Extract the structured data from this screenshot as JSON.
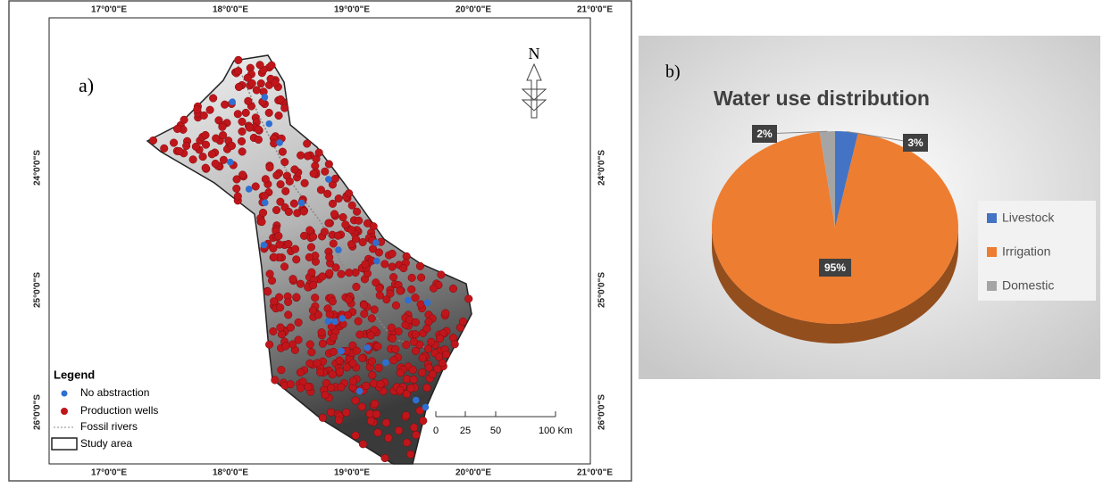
{
  "map": {
    "panel_label": "a)",
    "lon_labels": [
      "17°0'0\"E",
      "18°0'0\"E",
      "19°0'0\"E",
      "20°0'0\"E",
      "21°0'0\"E"
    ],
    "lat_labels": [
      "24°0'0\"S",
      "25°0'0\"S",
      "26°0'0\"S"
    ],
    "north": "N",
    "legend": {
      "title": "Legend",
      "items": [
        "No abstraction",
        "Production wells",
        "Fossil rivers",
        "Study area"
      ]
    },
    "scale_bar": [
      "0",
      "25",
      "50",
      "100 Km"
    ]
  },
  "chart_data": {
    "type": "pie",
    "panel_label": "b)",
    "title": "Water use distribution",
    "categories": [
      "Livestock",
      "Irrigation",
      "Domestic"
    ],
    "values": [
      3,
      95,
      2
    ],
    "value_labels": [
      "3%",
      "95%",
      "2%"
    ],
    "colors": [
      "#4472c4",
      "#ed7d31",
      "#a5a5a5"
    ],
    "legend": "right"
  }
}
